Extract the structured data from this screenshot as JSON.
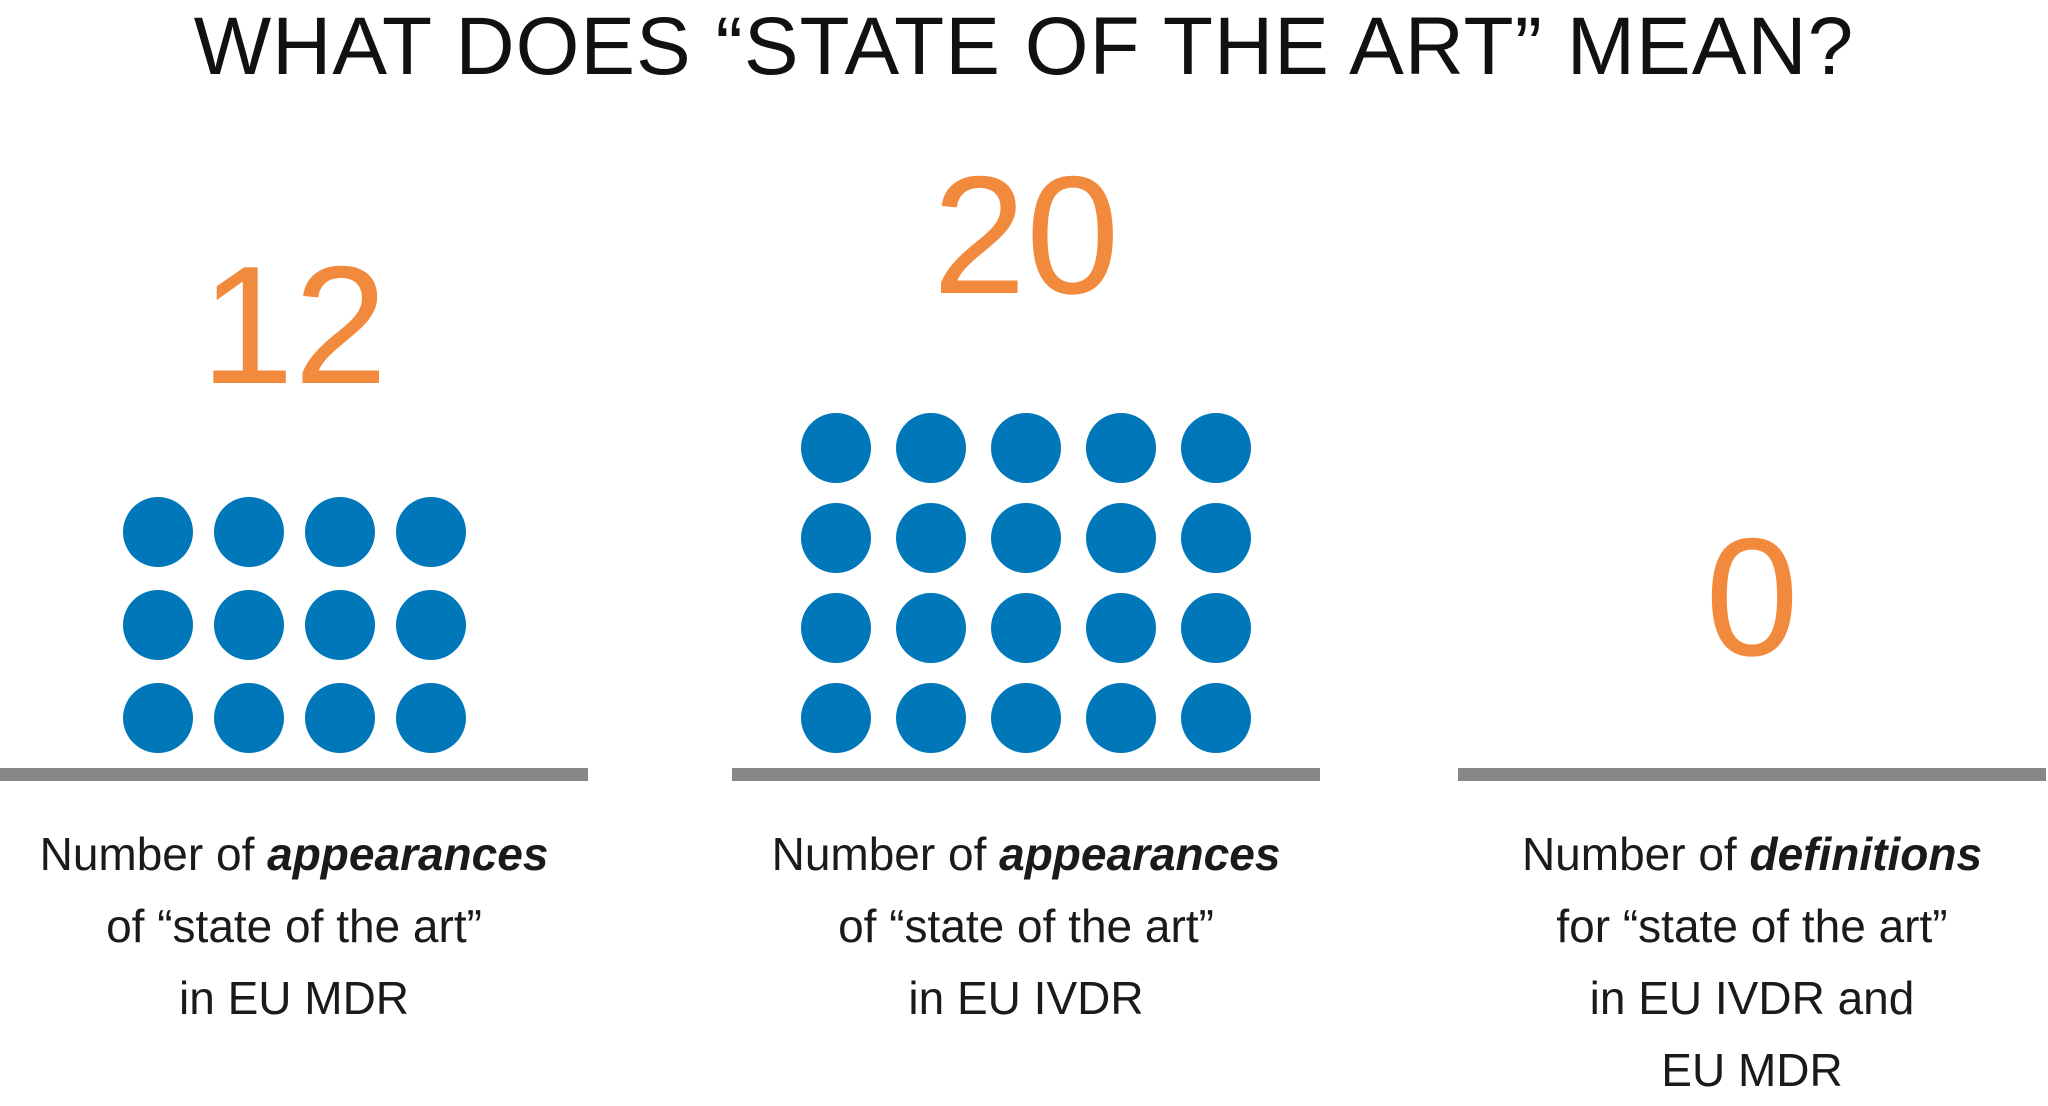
{
  "title": "WHAT DOES “STATE OF THE ART” MEAN?",
  "colors": {
    "number": "#f28a3e",
    "dot": "#0077b8",
    "baseline": "#878787",
    "text": "#1a1a1a"
  },
  "chart_data": {
    "type": "bar",
    "title": "WHAT DOES “STATE OF THE ART” MEAN?",
    "categories": [
      "Number of appearances of “state of the art” in EU MDR",
      "Number of appearances of “state of the art” in EU IVDR",
      "Number of definitions for “state of the art” in EU IVDR and EU MDR"
    ],
    "values": [
      12,
      20,
      0
    ],
    "panels": [
      {
        "value": 12,
        "value_label": "12",
        "label_pre": "Number of ",
        "label_em": "appearances",
        "label_line2": "of “state of the art”",
        "label_line3": "in EU MDR",
        "label_line4": ""
      },
      {
        "value": 20,
        "value_label": "20",
        "label_pre": "Number of ",
        "label_em": "appearances",
        "label_line2": "of “state of the art”",
        "label_line3": "in EU IVDR",
        "label_line4": ""
      },
      {
        "value": 0,
        "value_label": "0",
        "label_pre": "Number of ",
        "label_em": "definitions",
        "label_line2": "for “state of the art”",
        "label_line3": "in EU IVDR and",
        "label_line4": "EU MDR"
      }
    ]
  }
}
